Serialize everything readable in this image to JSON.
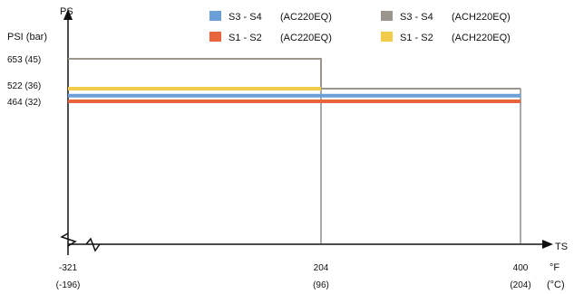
{
  "chart_data": {
    "type": "line",
    "xlabel": "TS",
    "ylabel": "PS",
    "y_unit_label": "PSI (bar)",
    "x_unit_label_f": "°F",
    "x_unit_label_c": "(°C)",
    "xlim": [
      -321,
      400
    ],
    "x_axis_breaks": [
      {
        "value": -321,
        "primary": "-321",
        "secondary": "(-196)"
      },
      {
        "value": 204,
        "primary": "204",
        "secondary": "(96)"
      },
      {
        "value": 400,
        "primary": "400",
        "secondary": "(204)"
      }
    ],
    "y_ticks": [
      {
        "value": 653,
        "label": "653 (45)"
      },
      {
        "value": 522,
        "label": "522 (36)"
      },
      {
        "value": 464,
        "label": "464 (32)"
      }
    ],
    "grid": false,
    "legend_position": "top",
    "series": [
      {
        "name": "S3 - S4",
        "model": "(AC220EQ)",
        "color": "#6a9fd8",
        "x": [
          -321,
          400
        ],
        "y": [
          490,
          490
        ]
      },
      {
        "name": "S3 - S4",
        "model": "(ACH220EQ)",
        "color": "#9b958d",
        "x": [
          -321,
          204,
          204,
          400
        ],
        "y": [
          653,
          653,
          522,
          522
        ]
      },
      {
        "name": "S1 - S2",
        "model": "(AC220EQ)",
        "color": "#e8643a",
        "x": [
          -321,
          400
        ],
        "y": [
          464,
          464
        ]
      },
      {
        "name": "S1 - S2",
        "model": "(ACH220EQ)",
        "color": "#f2cb4a",
        "x": [
          -321,
          204
        ],
        "y": [
          522,
          522
        ]
      }
    ]
  }
}
